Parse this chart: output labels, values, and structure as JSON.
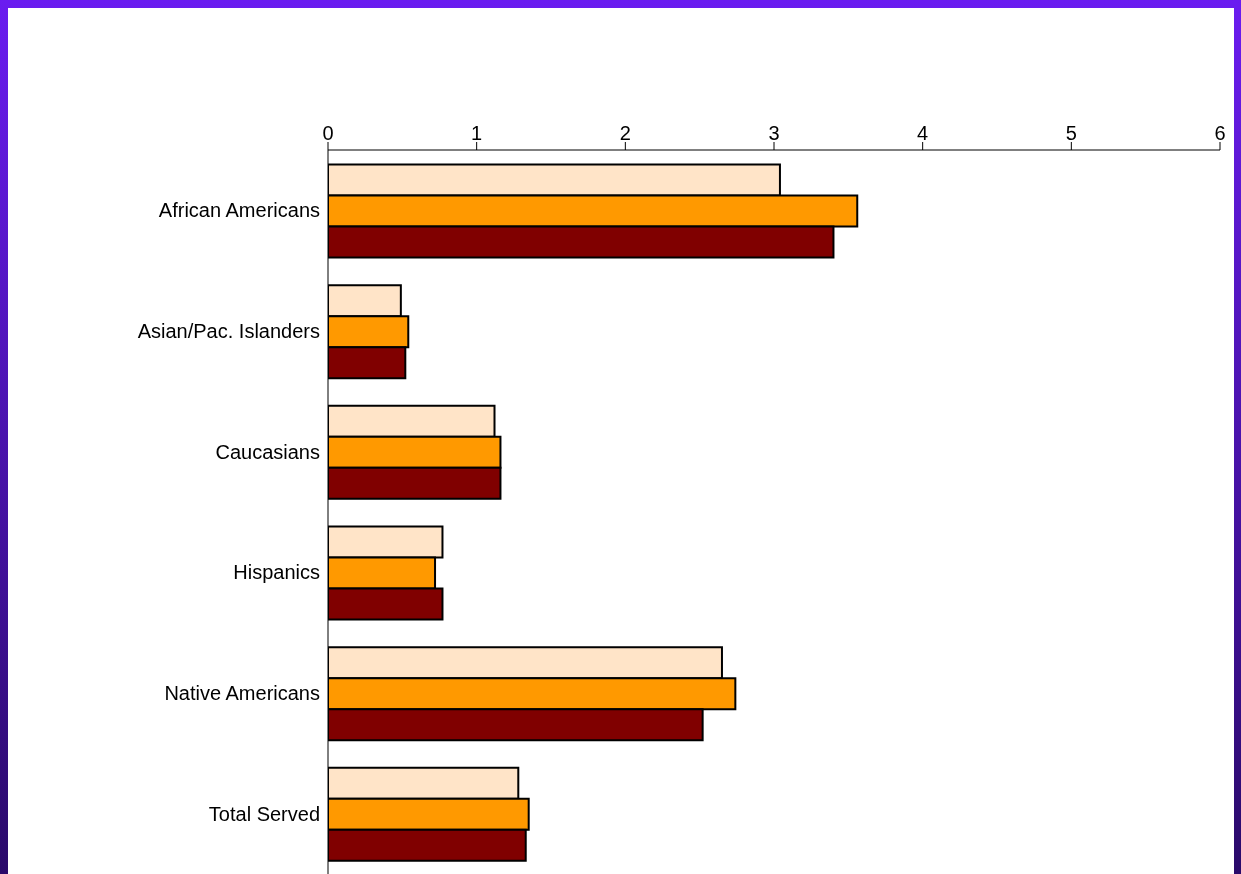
{
  "chart_data": {
    "type": "bar",
    "orientation": "horizontal",
    "categories": [
      "African Americans",
      "Asian/Pac. Islanders",
      "Caucasians",
      "Hispanics",
      "Native Americans",
      "Total Served"
    ],
    "series": [
      {
        "color": "#ffe4c8",
        "values": [
          3.04,
          0.49,
          1.12,
          0.77,
          2.65,
          1.28
        ]
      },
      {
        "color": "#ff9900",
        "values": [
          3.56,
          0.54,
          1.16,
          0.72,
          2.74,
          1.35
        ]
      },
      {
        "color": "#800000",
        "values": [
          3.4,
          0.52,
          1.16,
          0.77,
          2.52,
          1.33
        ]
      }
    ],
    "xlim": [
      0,
      6
    ],
    "xticks": [
      0,
      1,
      2,
      3,
      4,
      5,
      6
    ]
  }
}
